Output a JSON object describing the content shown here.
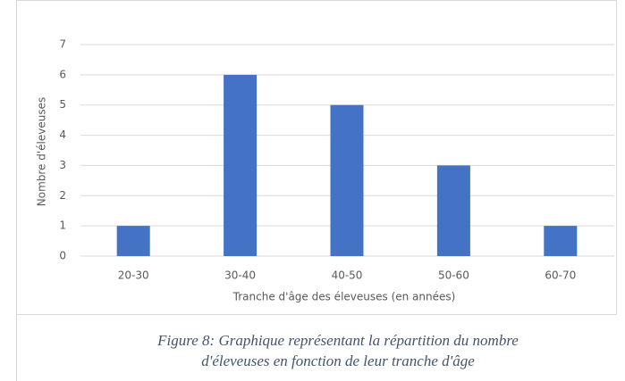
{
  "chart_data": {
    "type": "bar",
    "categories": [
      "20-30",
      "30-40",
      "40-50",
      "50-60",
      "60-70"
    ],
    "values": [
      1,
      6,
      5,
      3,
      1
    ],
    "color": "#4472c4",
    "ylim": [
      0,
      7
    ],
    "yticks": [
      0,
      1,
      2,
      3,
      4,
      5,
      6,
      7
    ],
    "grid": true,
    "xlabel": "Tranche d'âge des éleveuses (en années)",
    "ylabel": "Nombre d'éleveuses",
    "caption": [
      "Figure 8: Graphique représentant la répartition du nombre",
      "d'éleveuses en fonction de leur tranche d'âge"
    ]
  }
}
